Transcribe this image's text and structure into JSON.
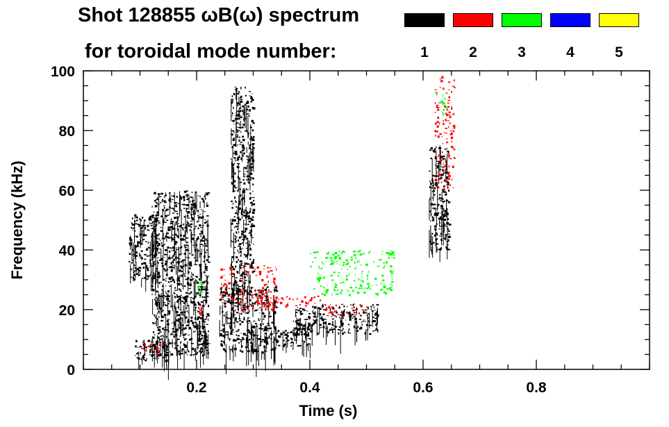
{
  "title": {
    "line1": "Shot 128855 ωB(ω) spectrum",
    "line2": "for toroidal mode number:"
  },
  "legend": [
    {
      "label": "1",
      "color": "#000000"
    },
    {
      "label": "2",
      "color": "#ff0000"
    },
    {
      "label": "3",
      "color": "#00ff00"
    },
    {
      "label": "4",
      "color": "#0000ff"
    },
    {
      "label": "5",
      "color": "#ffff00"
    }
  ],
  "chart_data": {
    "type": "heatmap",
    "xlabel": "Time (s)",
    "ylabel": "Frequency (kHz)",
    "xlim": [
      0.0,
      1.0
    ],
    "ylim": [
      0,
      100
    ],
    "x_ticks": [
      0.2,
      0.4,
      0.6,
      0.8
    ],
    "y_ticks": [
      0,
      20,
      40,
      60,
      80,
      100
    ],
    "x_minor_step": 0.05,
    "y_minor_step": 5,
    "series": [
      {
        "name": "1",
        "color": "#000000",
        "regions": [
          {
            "t": [
              0.08,
              0.13
            ],
            "f": [
              30,
              52
            ]
          },
          {
            "t": [
              0.09,
              0.15
            ],
            "f": [
              3,
              10
            ]
          },
          {
            "t": [
              0.12,
              0.22
            ],
            "f": [
              5,
              60
            ]
          },
          {
            "t": [
              0.2,
              0.215
            ],
            "f": [
              8,
              12
            ]
          },
          {
            "t": [
              0.24,
              0.34
            ],
            "f": [
              6,
              28
            ]
          },
          {
            "t": [
              0.26,
              0.3
            ],
            "f": [
              25,
              95
            ]
          },
          {
            "t": [
              0.34,
              0.4
            ],
            "f": [
              8,
              14
            ]
          },
          {
            "t": [
              0.37,
              0.52
            ],
            "f": [
              12,
              22
            ]
          },
          {
            "t": [
              0.61,
              0.645
            ],
            "f": [
              40,
              75
            ]
          }
        ]
      },
      {
        "name": "2",
        "color": "#ff0000",
        "regions": [
          {
            "t": [
              0.24,
              0.34
            ],
            "f": [
              20,
              35
            ]
          },
          {
            "t": [
              0.3,
              0.42
            ],
            "f": [
              21,
              25
            ]
          },
          {
            "t": [
              0.42,
              0.5
            ],
            "f": [
              18,
              22
            ]
          },
          {
            "t": [
              0.2,
              0.21
            ],
            "f": [
              18,
              22
            ]
          },
          {
            "t": [
              0.1,
              0.14
            ],
            "f": [
              5,
              9
            ]
          },
          {
            "t": [
              0.62,
              0.655
            ],
            "f": [
              60,
              99
            ]
          }
        ]
      },
      {
        "name": "3",
        "color": "#00ff00",
        "regions": [
          {
            "t": [
              0.4,
              0.55
            ],
            "f": [
              25,
              40
            ]
          },
          {
            "t": [
              0.2,
              0.21
            ],
            "f": [
              26,
              30
            ]
          },
          {
            "t": [
              0.62,
              0.64
            ],
            "f": [
              85,
              93
            ]
          }
        ]
      }
    ]
  }
}
